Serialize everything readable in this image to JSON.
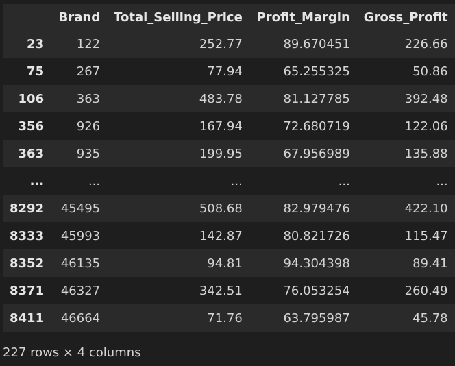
{
  "table": {
    "columns": [
      "",
      "Brand",
      "Total_Selling_Price",
      "Profit_Margin",
      "Gross_Profit"
    ],
    "rows": [
      [
        "23",
        "122",
        "252.77",
        "89.670451",
        "226.66"
      ],
      [
        "75",
        "267",
        "77.94",
        "65.255325",
        "50.86"
      ],
      [
        "106",
        "363",
        "483.78",
        "81.127785",
        "392.48"
      ],
      [
        "356",
        "926",
        "167.94",
        "72.680719",
        "122.06"
      ],
      [
        "363",
        "935",
        "199.95",
        "67.956989",
        "135.88"
      ],
      [
        "...",
        "...",
        "...",
        "...",
        "..."
      ],
      [
        "8292",
        "45495",
        "508.68",
        "82.979476",
        "422.10"
      ],
      [
        "8333",
        "45993",
        "142.87",
        "80.821726",
        "115.47"
      ],
      [
        "8352",
        "46135",
        "94.81",
        "94.304398",
        "89.41"
      ],
      [
        "8371",
        "46327",
        "342.51",
        "76.053254",
        "260.49"
      ],
      [
        "8411",
        "46664",
        "71.76",
        "63.795987",
        "45.78"
      ]
    ]
  },
  "footer": "227 rows × 4 columns",
  "colors": {
    "background": "#1e1e1e",
    "row_stripe": "#2a2a2a",
    "text": "#d4d4d4"
  }
}
